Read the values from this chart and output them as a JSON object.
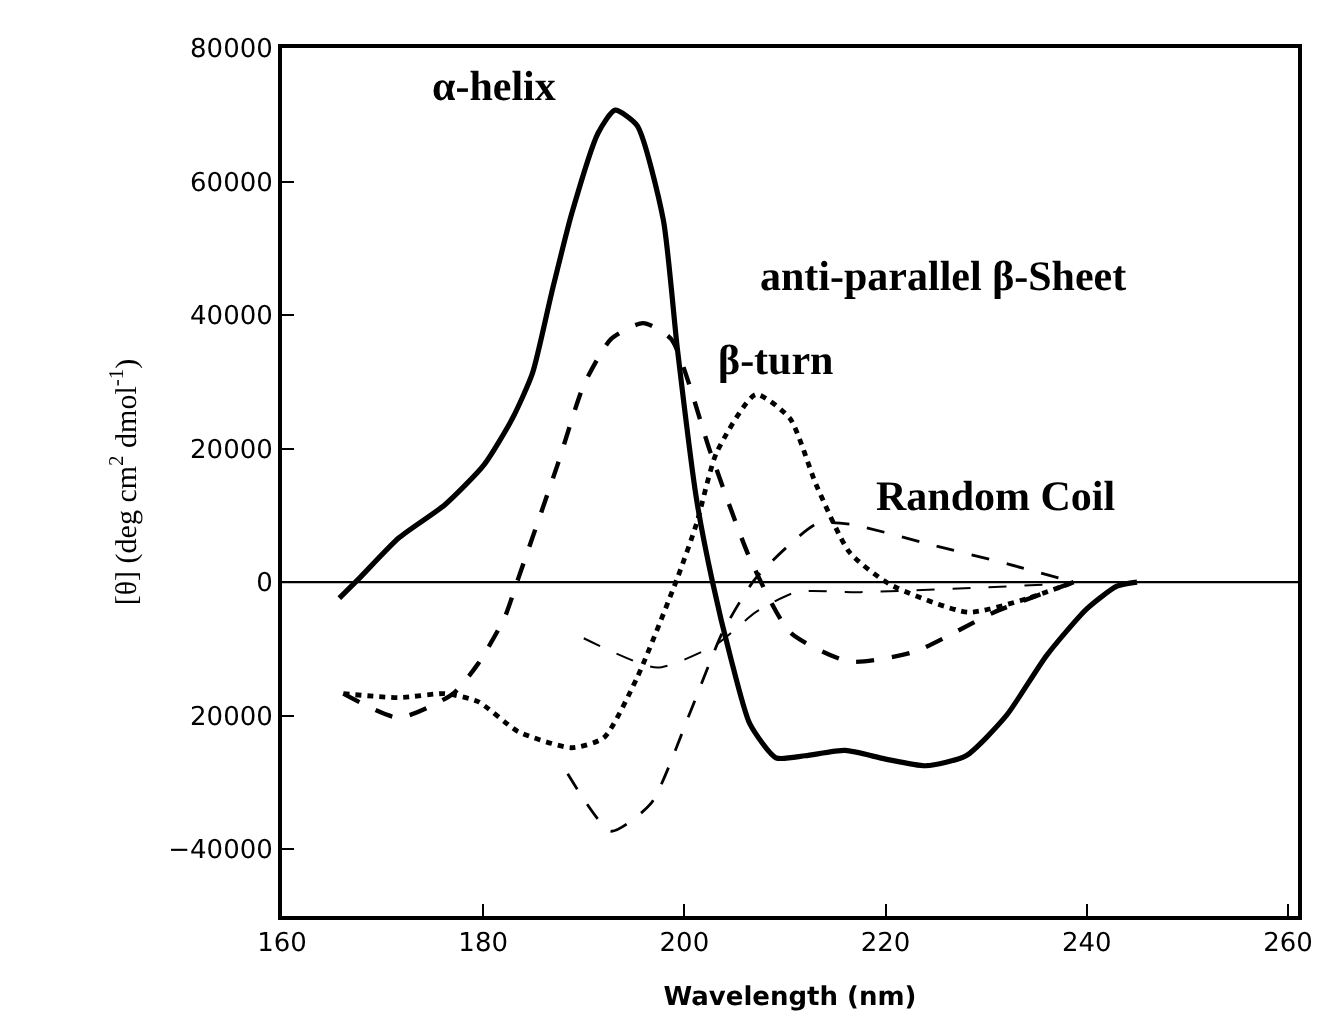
{
  "chart_data": {
    "type": "line",
    "xlabel": "Wavelength (nm)",
    "ylabel": "[θ] (deg cm$^{2}$ dmol$^{-1}$)",
    "xlim": [
      160,
      261
    ],
    "xticks": [
      160,
      180,
      200,
      220,
      240,
      260
    ],
    "ylim": [
      -50000,
      80000
    ],
    "yticks": [
      80000,
      60000,
      40000,
      20000,
      0,
      {
        "value": -20000,
        "label": "20000"
      },
      {
        "value": -40000,
        "label": "−40000"
      }
    ],
    "grid": false,
    "legend": false,
    "marker": "none",
    "ref_lines": [
      {
        "axis": "y",
        "value": 0,
        "label": null,
        "color": "#000000",
        "line_style": "solid"
      }
    ],
    "series": [
      {
        "name": "α-helix",
        "color": "#000000",
        "line_style": "solid",
        "x": [
          165.7,
          167.7,
          171.6,
          176.2,
          180.1,
          182.9,
          184.9,
          186.8,
          188.8,
          191.4,
          193.1,
          195.3,
          197.9,
          199.3,
          201.2,
          202.8,
          204.6,
          206.5,
          209.1,
          212,
          216,
          220,
          224,
          228,
          232,
          236,
          240,
          243,
          245
        ],
        "values": [
          -2400,
          600,
          6600,
          11600,
          17600,
          24500,
          31300,
          43300,
          55200,
          67200,
          70700,
          68400,
          54300,
          35000,
          12500,
          0,
          -11300,
          -21200,
          -26300,
          -26000,
          -25200,
          -26500,
          -27500,
          -26000,
          -20000,
          -11000,
          -4000,
          -600,
          0
        ]
      },
      {
        "name": "anti-parallel β-Sheet",
        "color": "#000000",
        "line_style": "dashed",
        "x": [
          166.1,
          171.6,
          177,
          179.5,
          182.1,
          183.5,
          187.4,
          190,
          192.7,
          195.9,
          198.7,
          202.6,
          206.5,
          210.5,
          216.4,
          222.9,
          230.8,
          238.7
        ],
        "values": [
          -16700,
          -20300,
          -16700,
          -12200,
          -5400,
          600,
          17600,
          29500,
          36400,
          38800,
          36400,
          19400,
          3600,
          -7500,
          -11900,
          -10400,
          -4500,
          0
        ]
      },
      {
        "name": "β-turn",
        "color": "#000000",
        "line_style": "dotted",
        "x": [
          166.1,
          171.6,
          176.2,
          179.5,
          183.5,
          188.8,
          192,
          195.3,
          199.3,
          201.2,
          203.2,
          207.1,
          210.5,
          213.1,
          216.4,
          220.4,
          228.2,
          234.2,
          238.7
        ],
        "values": [
          -16700,
          -17300,
          -16700,
          -17900,
          -22400,
          -24800,
          -23300,
          -14300,
          600,
          8700,
          19400,
          28100,
          24500,
          14600,
          4500,
          -300,
          -4500,
          -2400,
          0
        ]
      },
      {
        "name": "Random Coil",
        "color": "#000000",
        "line_style": "dashed",
        "x": [
          188.4,
          192.7,
          196.7,
          200.6,
          203.8,
          207.1,
          213.1,
          216.4,
          224.3,
          232.2,
          238.7
        ],
        "values": [
          -28700,
          -37300,
          -33100,
          -19400,
          -7500,
          600,
          8700,
          8700,
          5700,
          2700,
          0
        ]
      },
      {
        "color": "#000000",
        "line_style": "dashed",
        "x": [
          190,
          197.3,
          203.2,
          207.1,
          211.1,
          217.5,
          237.1
        ],
        "values": [
          -8400,
          -12800,
          -9300,
          -4500,
          -1500,
          -1500,
          -300
        ]
      }
    ]
  }
}
